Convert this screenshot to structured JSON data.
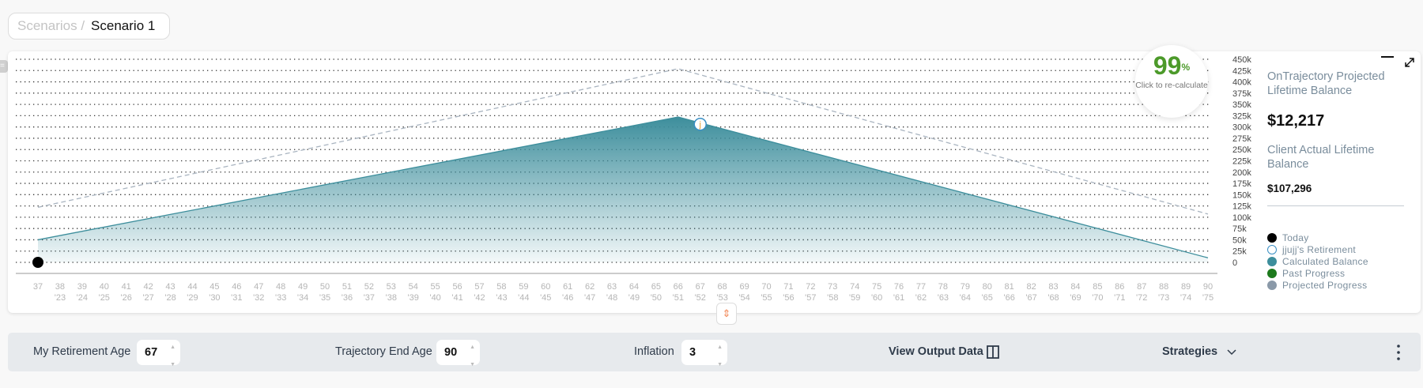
{
  "breadcrumb": {
    "parent": "Scenarios /",
    "current": "Scenario 1"
  },
  "gauge": {
    "value": "99",
    "unit": "%",
    "caption": "Click to re-calculate",
    "color": "#4c9a2a"
  },
  "panel": {
    "projected_label": "OnTrajectory Projected Lifetime Balance",
    "projected_value": "$12,217",
    "actual_label": "Client Actual Lifetime Balance",
    "actual_value": "$107,296"
  },
  "legend": [
    {
      "label": "Today",
      "color": "#000000",
      "style": "filled"
    },
    {
      "label": "jjujj's Retirement",
      "color": "#3a8fc4",
      "style": "outline"
    },
    {
      "label": "Calculated Balance",
      "color": "#3d8e9c",
      "style": "filled"
    },
    {
      "label": "Past Progress",
      "color": "#1d7a1d",
      "style": "filled"
    },
    {
      "label": "Projected Progress",
      "color": "#8a99a8",
      "style": "filled"
    }
  ],
  "icons": {
    "minimize": "minimize-icon",
    "expand": "expand-icon",
    "resize": "resize-vertical-icon",
    "output": "columns-icon",
    "strategies": "chevron-down-icon",
    "more": "kebab-icon"
  },
  "controls": {
    "retirement_label": "My Retirement Age",
    "retirement_value": "67",
    "end_label": "Trajectory End Age",
    "end_value": "90",
    "inflation_label": "Inflation",
    "inflation_value": "3",
    "output_label": "View Output Data",
    "strategies_label": "Strategies"
  },
  "chart_data": {
    "type": "area",
    "x_ages": [
      37,
      38,
      39,
      40,
      41,
      42,
      43,
      44,
      45,
      46,
      47,
      48,
      49,
      50,
      51,
      52,
      53,
      54,
      55,
      56,
      57,
      58,
      59,
      60,
      61,
      62,
      63,
      64,
      65,
      66,
      67,
      68,
      69,
      70,
      71,
      72,
      73,
      74,
      75,
      76,
      77,
      78,
      79,
      80,
      81,
      82,
      83,
      84,
      85,
      86,
      87,
      88,
      89,
      90
    ],
    "x_years": [
      "",
      "'23",
      "'24",
      "'25",
      "'26",
      "'27",
      "'28",
      "'29",
      "'30",
      "'31",
      "'32",
      "'33",
      "'34",
      "'35",
      "'36",
      "'37",
      "'38",
      "'39",
      "'40",
      "'41",
      "'42",
      "'43",
      "'44",
      "'45",
      "'46",
      "'47",
      "'48",
      "'49",
      "'50",
      "'51",
      "'52",
      "'53",
      "'54",
      "'55",
      "'56",
      "'57",
      "'58",
      "'59",
      "'60",
      "'61",
      "'62",
      "'63",
      "'64",
      "'65",
      "'66",
      "'67",
      "'68",
      "'69",
      "'70",
      "'71",
      "'72",
      "'73",
      "'74",
      "'75"
    ],
    "y_ticks": [
      "0",
      "25k",
      "50k",
      "75k",
      "100k",
      "125k",
      "150k",
      "175k",
      "200k",
      "225k",
      "250k",
      "275k",
      "300k",
      "325k",
      "350k",
      "375k",
      "400k",
      "425k",
      "450k"
    ],
    "ylim": [
      0,
      450000
    ],
    "grid": "dotted horizontal",
    "series": [
      {
        "key": "calculated",
        "points": [
          [
            37,
            50000
          ],
          [
            66,
            322000
          ],
          [
            90,
            10000
          ]
        ],
        "color": "#3d8e9c",
        "style": "area-gradient"
      },
      {
        "key": "projected",
        "points": [
          [
            37,
            122000
          ],
          [
            66,
            429000
          ],
          [
            90,
            107000
          ]
        ],
        "color": "#a9b4c0",
        "style": "dashed"
      }
    ],
    "today": {
      "age": 37,
      "value": 0
    },
    "retirement_marker": {
      "age": 67,
      "value": 306000,
      "label": "j"
    }
  }
}
